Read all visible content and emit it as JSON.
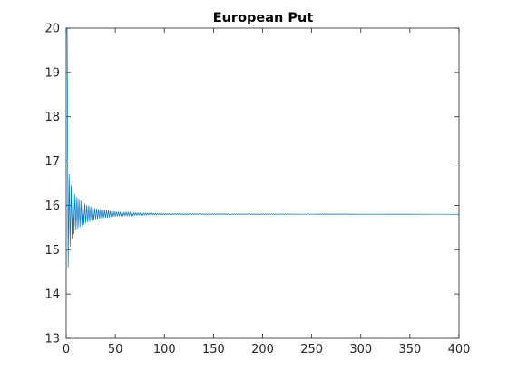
{
  "chart_data": {
    "type": "line",
    "title": "European Put",
    "xlabel": "",
    "ylabel": "",
    "xlim": [
      0,
      400
    ],
    "ylim": [
      13,
      20
    ],
    "xticks": [
      0,
      50,
      100,
      150,
      200,
      250,
      300,
      350,
      400
    ],
    "yticks": [
      13,
      14,
      15,
      16,
      17,
      18,
      19,
      20
    ],
    "grid": false,
    "legend": "none",
    "line_color": "#0072BD",
    "series": [
      {
        "converged_value": 15.8,
        "x_range": [
          1,
          400
        ],
        "envelope": [
          {
            "x": 1,
            "high": 20.0,
            "low": 13.45
          },
          {
            "x": 2,
            "high": 17.3,
            "low": 14.6
          },
          {
            "x": 3,
            "high": 16.7,
            "low": 14.95
          },
          {
            "x": 5,
            "high": 16.45,
            "low": 15.2
          },
          {
            "x": 10,
            "high": 16.2,
            "low": 15.45
          },
          {
            "x": 20,
            "high": 16.02,
            "low": 15.6
          },
          {
            "x": 30,
            "high": 15.93,
            "low": 15.69
          },
          {
            "x": 50,
            "high": 15.86,
            "low": 15.75
          },
          {
            "x": 75,
            "high": 15.83,
            "low": 15.78
          },
          {
            "x": 100,
            "high": 15.815,
            "low": 15.79
          },
          {
            "x": 150,
            "high": 15.81,
            "low": 15.795
          },
          {
            "x": 400,
            "high": 15.802,
            "low": 15.798
          }
        ]
      }
    ]
  }
}
